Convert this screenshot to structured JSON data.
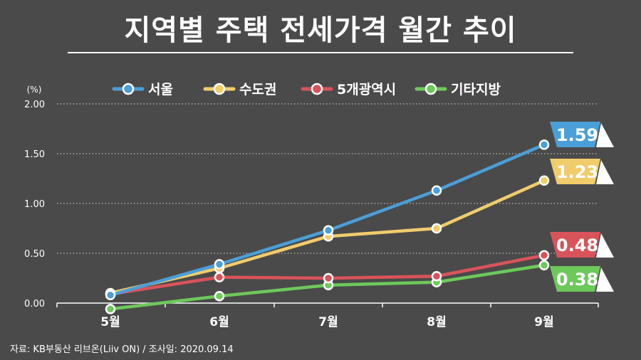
{
  "title": "지역별 주택 전세가격 월간 추이",
  "source": "자료: KB부동산 리브온(Liiv ON)  / 조사일: 2020.09.14",
  "chart_data": {
    "type": "line",
    "title": "지역별 주택 전세가격 월간 추이",
    "unit_label": "(%)",
    "categories": [
      "5월",
      "6월",
      "7월",
      "8월",
      "9월"
    ],
    "ylim": [
      0,
      2.0
    ],
    "yticks": [
      "0.00",
      "0.50",
      "1.00",
      "1.50",
      "2.00"
    ],
    "grid": true,
    "legend_position": "top",
    "series": [
      {
        "name": "서울",
        "color": "#4a9fd8",
        "values": [
          0.08,
          0.39,
          0.73,
          1.13,
          1.59
        ],
        "end_label": "1.59"
      },
      {
        "name": "수도권",
        "color": "#f1cc6b",
        "values": [
          0.1,
          0.35,
          0.67,
          0.75,
          1.23
        ],
        "end_label": "1.23"
      },
      {
        "name": "5개광역시",
        "color": "#d9535a",
        "values": [
          0.09,
          0.26,
          0.25,
          0.27,
          0.48
        ],
        "end_label": "0.48"
      },
      {
        "name": "기타지방",
        "color": "#6dc95a",
        "values": [
          -0.06,
          0.07,
          0.18,
          0.21,
          0.38
        ],
        "end_label": "0.38"
      }
    ]
  }
}
